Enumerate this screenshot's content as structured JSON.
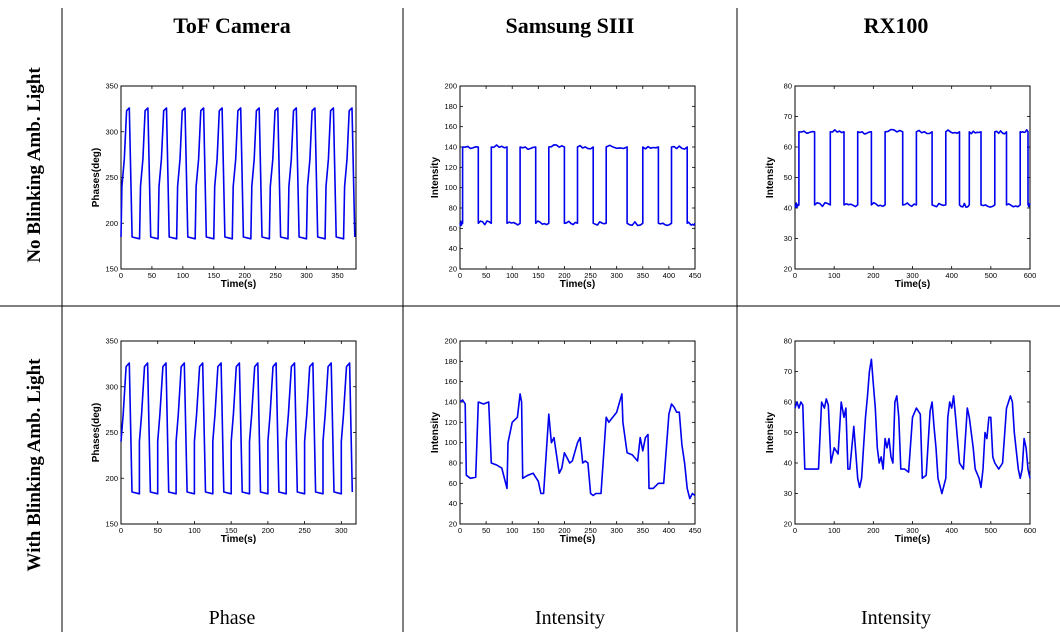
{
  "figure": {
    "column_headers": [
      "ToF Camera",
      "Samsung SIII",
      "RX100"
    ],
    "row_headers": [
      "No Blinking Amb. Light",
      "With Blinking Amb. Light"
    ],
    "bottom_labels": [
      "Phase",
      "Intensity",
      "Intensity"
    ]
  },
  "chart_data": [
    {
      "type": "line",
      "panel": "tof-no-blink",
      "xlabel": "Time(s)",
      "ylabel": "Phases(deg)",
      "xlim": [
        0,
        380
      ],
      "ylim": [
        150,
        350
      ],
      "xticks": [
        0,
        50,
        100,
        150,
        200,
        250,
        300,
        350
      ],
      "yticks": [
        150,
        200,
        250,
        300,
        350
      ],
      "series": [
        {
          "period": 30,
          "x_start": 0,
          "x_end": 380,
          "levels": [
            {
              "phase": 0.0,
              "value": 185
            },
            {
              "phase": 0.05,
              "value": 240
            },
            {
              "phase": 0.18,
              "value": 270
            },
            {
              "phase": 0.3,
              "value": 323
            },
            {
              "phase": 0.45,
              "value": 326
            },
            {
              "phase": 0.6,
              "value": 185
            },
            {
              "phase": 1.0,
              "value": 183
            }
          ]
        }
      ]
    },
    {
      "type": "line",
      "panel": "samsung-no-blink",
      "xlabel": "Time(s)",
      "ylabel": "Intensity",
      "xlim": [
        0,
        450
      ],
      "ylim": [
        20,
        200
      ],
      "xticks": [
        0,
        50,
        100,
        150,
        200,
        250,
        300,
        350,
        400,
        450
      ],
      "yticks": [
        20,
        40,
        60,
        80,
        100,
        120,
        140,
        160,
        180,
        200
      ],
      "series": [
        {
          "high": 140,
          "low": 65,
          "segments": [
            [
              0,
              5,
              "low"
            ],
            [
              5,
              35,
              "high"
            ],
            [
              35,
              60,
              "low"
            ],
            [
              60,
              90,
              "high"
            ],
            [
              90,
              115,
              "low"
            ],
            [
              115,
              145,
              "high"
            ],
            [
              145,
              170,
              "low"
            ],
            [
              170,
              200,
              "high"
            ],
            [
              200,
              225,
              "low"
            ],
            [
              225,
              255,
              "high"
            ],
            [
              255,
              280,
              "low"
            ],
            [
              280,
              320,
              "high"
            ],
            [
              320,
              350,
              "low"
            ],
            [
              350,
              380,
              "high"
            ],
            [
              380,
              405,
              "low"
            ],
            [
              405,
              435,
              "high"
            ],
            [
              435,
              450,
              "low"
            ]
          ]
        }
      ]
    },
    {
      "type": "line",
      "panel": "rx100-no-blink",
      "xlabel": "Time(s)",
      "ylabel": "Intensity",
      "xlim": [
        0,
        600
      ],
      "ylim": [
        20,
        80
      ],
      "xticks": [
        0,
        100,
        200,
        300,
        400,
        500,
        600
      ],
      "yticks": [
        20,
        30,
        40,
        50,
        60,
        70,
        80
      ],
      "series": [
        {
          "high": 65,
          "low": 41,
          "segments": [
            [
              0,
              10,
              "low"
            ],
            [
              10,
              50,
              "high"
            ],
            [
              50,
              90,
              "low"
            ],
            [
              90,
              125,
              "high"
            ],
            [
              125,
              160,
              "low"
            ],
            [
              160,
              195,
              "high"
            ],
            [
              195,
              230,
              "low"
            ],
            [
              230,
              275,
              "high"
            ],
            [
              275,
              310,
              "low"
            ],
            [
              310,
              350,
              "high"
            ],
            [
              350,
              385,
              "low"
            ],
            [
              385,
              420,
              "high"
            ],
            [
              420,
              445,
              "low"
            ],
            [
              445,
              475,
              "high"
            ],
            [
              475,
              510,
              "low"
            ],
            [
              510,
              540,
              "high"
            ],
            [
              540,
              575,
              "low"
            ],
            [
              575,
              595,
              "high"
            ],
            [
              595,
              600,
              "low"
            ]
          ]
        }
      ]
    },
    {
      "type": "line",
      "panel": "tof-with-blink",
      "xlabel": "Time(s)",
      "ylabel": "Phases(deg)",
      "xlim": [
        0,
        320
      ],
      "ylim": [
        150,
        350
      ],
      "xticks": [
        0,
        50,
        100,
        150,
        200,
        250,
        300
      ],
      "yticks": [
        150,
        200,
        250,
        300,
        350
      ],
      "series": [
        {
          "period": 25,
          "x_start": 0,
          "x_end": 320,
          "levels": [
            {
              "phase": 0.0,
              "value": 240
            },
            {
              "phase": 0.12,
              "value": 270
            },
            {
              "phase": 0.28,
              "value": 322
            },
            {
              "phase": 0.45,
              "value": 326
            },
            {
              "phase": 0.6,
              "value": 185
            },
            {
              "phase": 1.0,
              "value": 183
            }
          ]
        }
      ]
    },
    {
      "type": "line",
      "panel": "samsung-with-blink",
      "xlabel": "Time(s)",
      "ylabel": "Intensity",
      "xlim": [
        0,
        450
      ],
      "ylim": [
        20,
        200
      ],
      "xticks": [
        0,
        50,
        100,
        150,
        200,
        250,
        300,
        350,
        400,
        450
      ],
      "yticks": [
        20,
        40,
        60,
        80,
        100,
        120,
        140,
        160,
        180,
        200
      ],
      "series": [
        {
          "points": [
            [
              0,
              140
            ],
            [
              5,
              142
            ],
            [
              10,
              138
            ],
            [
              12,
              68
            ],
            [
              20,
              65
            ],
            [
              30,
              66
            ],
            [
              35,
              140
            ],
            [
              45,
              138
            ],
            [
              55,
              140
            ],
            [
              60,
              80
            ],
            [
              70,
              78
            ],
            [
              80,
              75
            ],
            [
              90,
              55
            ],
            [
              92,
              100
            ],
            [
              100,
              120
            ],
            [
              110,
              125
            ],
            [
              115,
              148
            ],
            [
              118,
              140
            ],
            [
              120,
              65
            ],
            [
              130,
              68
            ],
            [
              140,
              70
            ],
            [
              150,
              62
            ],
            [
              155,
              50
            ],
            [
              160,
              50
            ],
            [
              170,
              128
            ],
            [
              175,
              100
            ],
            [
              180,
              105
            ],
            [
              190,
              70
            ],
            [
              195,
              75
            ],
            [
              200,
              90
            ],
            [
              205,
              85
            ],
            [
              210,
              80
            ],
            [
              215,
              82
            ],
            [
              225,
              100
            ],
            [
              230,
              105
            ],
            [
              235,
              80
            ],
            [
              240,
              82
            ],
            [
              245,
              80
            ],
            [
              250,
              50
            ],
            [
              255,
              48
            ],
            [
              260,
              50
            ],
            [
              270,
              50
            ],
            [
              280,
              125
            ],
            [
              285,
              120
            ],
            [
              300,
              130
            ],
            [
              310,
              148
            ],
            [
              312,
              120
            ],
            [
              320,
              90
            ],
            [
              330,
              88
            ],
            [
              340,
              82
            ],
            [
              345,
              105
            ],
            [
              350,
              92
            ],
            [
              355,
              105
            ],
            [
              360,
              108
            ],
            [
              362,
              55
            ],
            [
              370,
              55
            ],
            [
              380,
              60
            ],
            [
              390,
              60
            ],
            [
              400,
              128
            ],
            [
              405,
              138
            ],
            [
              410,
              135
            ],
            [
              415,
              130
            ],
            [
              420,
              130
            ],
            [
              425,
              98
            ],
            [
              430,
              80
            ],
            [
              435,
              55
            ],
            [
              440,
              45
            ],
            [
              445,
              50
            ],
            [
              450,
              48
            ]
          ]
        }
      ]
    },
    {
      "type": "line",
      "panel": "rx100-with-blink",
      "xlabel": "Time(s)",
      "ylabel": "Intensity",
      "xlim": [
        0,
        600
      ],
      "ylim": [
        20,
        80
      ],
      "xticks": [
        0,
        100,
        200,
        300,
        400,
        500,
        600
      ],
      "yticks": [
        20,
        30,
        40,
        50,
        60,
        70,
        80
      ],
      "series": [
        {
          "points": [
            [
              0,
              58
            ],
            [
              5,
              60
            ],
            [
              10,
              58
            ],
            [
              15,
              60
            ],
            [
              20,
              59
            ],
            [
              25,
              38
            ],
            [
              40,
              38
            ],
            [
              60,
              38
            ],
            [
              68,
              60
            ],
            [
              75,
              58
            ],
            [
              80,
              61
            ],
            [
              85,
              59
            ],
            [
              92,
              40
            ],
            [
              100,
              45
            ],
            [
              110,
              43
            ],
            [
              118,
              60
            ],
            [
              125,
              55
            ],
            [
              130,
              58
            ],
            [
              135,
              38
            ],
            [
              140,
              38
            ],
            [
              150,
              52
            ],
            [
              160,
              35
            ],
            [
              165,
              32
            ],
            [
              170,
              35
            ],
            [
              175,
              45
            ],
            [
              180,
              55
            ],
            [
              185,
              62
            ],
            [
              190,
              70
            ],
            [
              195,
              74
            ],
            [
              200,
              66
            ],
            [
              205,
              58
            ],
            [
              210,
              45
            ],
            [
              215,
              40
            ],
            [
              220,
              42
            ],
            [
              225,
              38
            ],
            [
              230,
              48
            ],
            [
              235,
              45
            ],
            [
              240,
              48
            ],
            [
              245,
              42
            ],
            [
              250,
              40
            ],
            [
              255,
              60
            ],
            [
              260,
              62
            ],
            [
              265,
              55
            ],
            [
              270,
              38
            ],
            [
              280,
              38
            ],
            [
              290,
              37
            ],
            [
              300,
              55
            ],
            [
              310,
              58
            ],
            [
              320,
              56
            ],
            [
              325,
              35
            ],
            [
              335,
              36
            ],
            [
              345,
              57
            ],
            [
              350,
              60
            ],
            [
              355,
              52
            ],
            [
              360,
              45
            ],
            [
              365,
              35
            ],
            [
              375,
              30
            ],
            [
              385,
              35
            ],
            [
              390,
              55
            ],
            [
              395,
              60
            ],
            [
              400,
              58
            ],
            [
              405,
              62
            ],
            [
              410,
              55
            ],
            [
              420,
              40
            ],
            [
              430,
              38
            ],
            [
              440,
              58
            ],
            [
              445,
              55
            ],
            [
              455,
              45
            ],
            [
              460,
              38
            ],
            [
              470,
              35
            ],
            [
              475,
              32
            ],
            [
              480,
              38
            ],
            [
              485,
              50
            ],
            [
              490,
              48
            ],
            [
              495,
              55
            ],
            [
              500,
              55
            ],
            [
              505,
              42
            ],
            [
              510,
              40
            ],
            [
              520,
              38
            ],
            [
              530,
              40
            ],
            [
              540,
              58
            ],
            [
              545,
              60
            ],
            [
              550,
              62
            ],
            [
              555,
              60
            ],
            [
              560,
              50
            ],
            [
              570,
              38
            ],
            [
              575,
              35
            ],
            [
              580,
              38
            ],
            [
              585,
              48
            ],
            [
              590,
              45
            ],
            [
              595,
              38
            ],
            [
              600,
              35
            ]
          ]
        }
      ]
    }
  ]
}
